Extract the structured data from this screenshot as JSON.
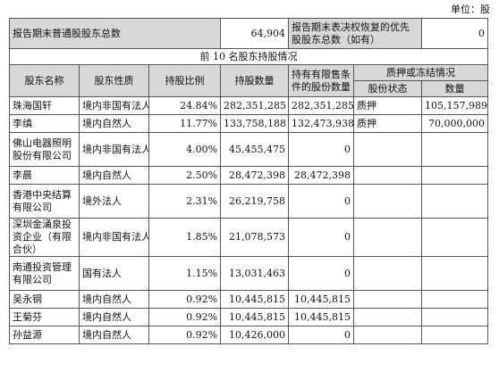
{
  "unit_label": "单位：股",
  "summary": {
    "common_label": "报告期末普通股股东总数",
    "common_value": "64,904",
    "preferred_label": "报告期末表决权恢复的优先股股东总数（如有）",
    "preferred_value": "0"
  },
  "section_title": "前 10 名股东持股情况",
  "headers": {
    "name": "股东名称",
    "nature": "股东性质",
    "ratio": "持股比例",
    "quantity": "持股数量",
    "restricted": "持有有限售条件的股份数量",
    "pledge_group": "质押或冻结情况",
    "pledge_status": "股份状态",
    "pledge_quantity": "数量"
  },
  "rows": [
    {
      "name": "珠海国轩",
      "nature": "境内非国有法人",
      "ratio": "24.84%",
      "quantity": "282,351,285",
      "restricted": "282,351,285",
      "pledge_status": "质押",
      "pledge_quantity": "105,157,989"
    },
    {
      "name": "李缜",
      "nature": "境内自然人",
      "ratio": "11.77%",
      "quantity": "133,758,188",
      "restricted": "132,473,938",
      "pledge_status": "质押",
      "pledge_quantity": "70,000,000"
    },
    {
      "name": "佛山电器照明股份有限公司",
      "nature": "境内非国有法人",
      "ratio": "4.00%",
      "quantity": "45,455,475",
      "restricted": "0",
      "pledge_status": "",
      "pledge_quantity": ""
    },
    {
      "name": "李晨",
      "nature": "境内自然人",
      "ratio": "2.50%",
      "quantity": "28,472,398",
      "restricted": "28,472,398",
      "pledge_status": "",
      "pledge_quantity": ""
    },
    {
      "name": "香港中央结算有限公司",
      "nature": "境外法人",
      "ratio": "2.31%",
      "quantity": "26,219,758",
      "restricted": "0",
      "pledge_status": "",
      "pledge_quantity": ""
    },
    {
      "name": "深圳金涌泉投资企业（有限合伙）",
      "nature": "境内非国有法人",
      "ratio": "1.85%",
      "quantity": "21,078,573",
      "restricted": "0",
      "pledge_status": "",
      "pledge_quantity": ""
    },
    {
      "name": "南通投资管理有限公司",
      "nature": "国有法人",
      "ratio": "1.15%",
      "quantity": "13,031,463",
      "restricted": "0",
      "pledge_status": "",
      "pledge_quantity": ""
    },
    {
      "name": "吴永钢",
      "nature": "境内自然人",
      "ratio": "0.92%",
      "quantity": "10,445,815",
      "restricted": "10,445,815",
      "pledge_status": "",
      "pledge_quantity": ""
    },
    {
      "name": "王菊芬",
      "nature": "境内自然人",
      "ratio": "0.92%",
      "quantity": "10,445,815",
      "restricted": "10,445,815",
      "pledge_status": "",
      "pledge_quantity": ""
    },
    {
      "name": "孙益源",
      "nature": "境内自然人",
      "ratio": "0.92%",
      "quantity": "10,426,000",
      "restricted": "0",
      "pledge_status": "",
      "pledge_quantity": ""
    }
  ]
}
